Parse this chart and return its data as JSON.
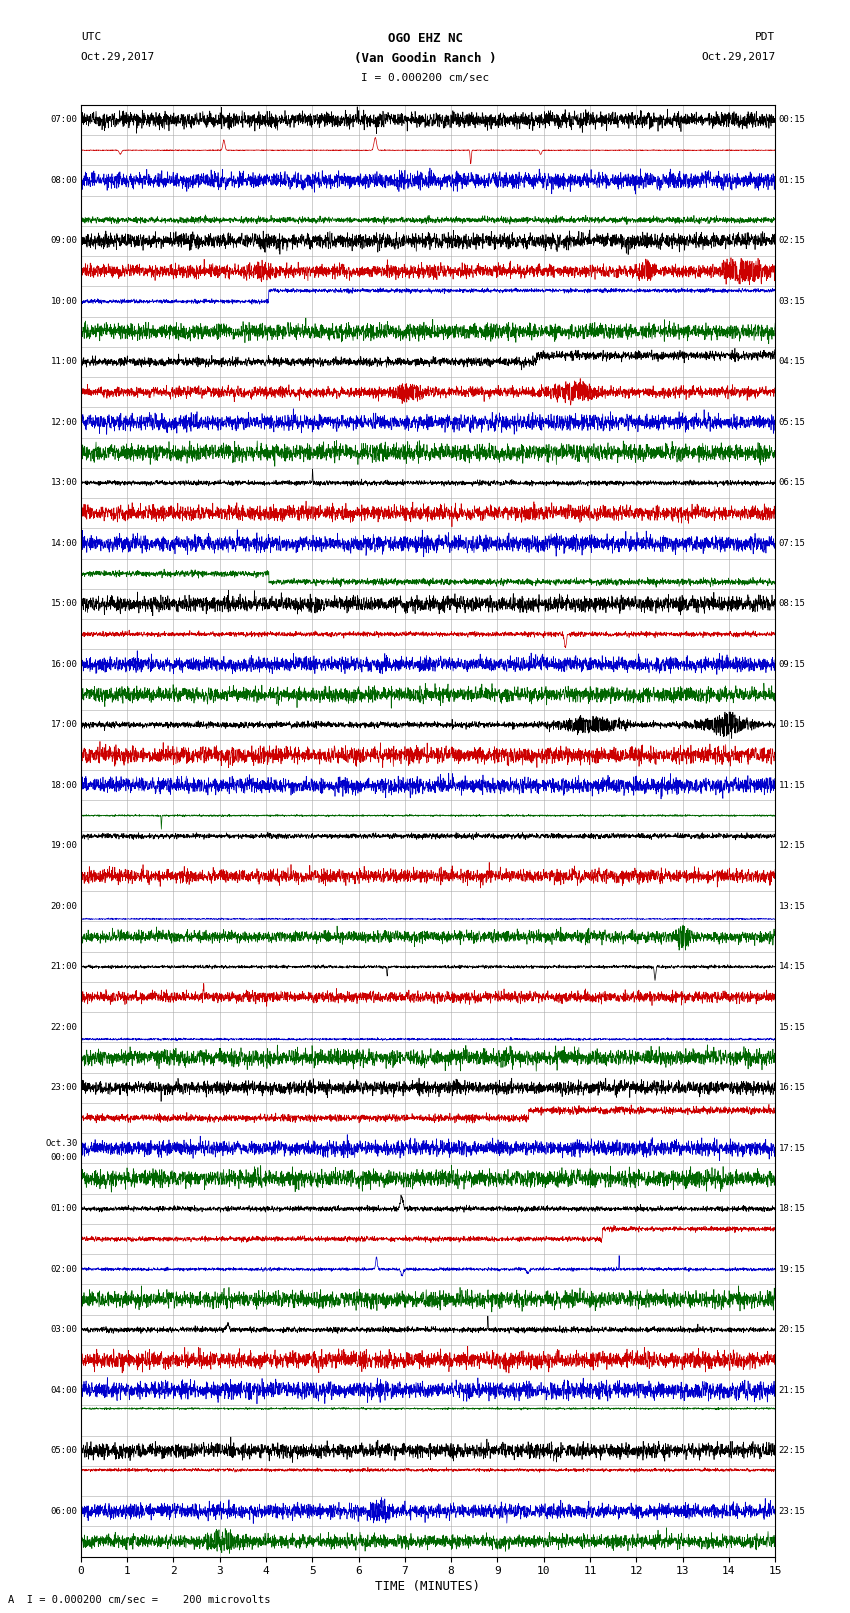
{
  "title_line1": "OGO EHZ NC",
  "title_line2": "(Van Goodin Ranch )",
  "scale_label": "I = 0.000200 cm/sec",
  "utc_label": "UTC",
  "utc_date": "Oct.29,2017",
  "pdt_label": "PDT",
  "pdt_date": "Oct.29,2017",
  "bottom_label": "A  I = 0.000200 cm/sec =    200 microvolts",
  "xlabel": "TIME (MINUTES)",
  "xlim": [
    0,
    15
  ],
  "xticks": [
    0,
    1,
    2,
    3,
    4,
    5,
    6,
    7,
    8,
    9,
    10,
    11,
    12,
    13,
    14,
    15
  ],
  "background_color": "#ffffff",
  "plot_bg_color": "#ffffff",
  "grid_color": "#aaaaaa",
  "trace_colors": [
    "#000000",
    "#cc0000",
    "#0000cc",
    "#006600"
  ],
  "num_rows": 48,
  "fig_width": 8.5,
  "fig_height": 16.13,
  "left_times": [
    "07:00",
    "",
    "08:00",
    "",
    "09:00",
    "",
    "10:00",
    "",
    "11:00",
    "",
    "12:00",
    "",
    "13:00",
    "",
    "14:00",
    "",
    "15:00",
    "",
    "16:00",
    "",
    "17:00",
    "",
    "18:00",
    "",
    "19:00",
    "",
    "20:00",
    "",
    "21:00",
    "",
    "22:00",
    "",
    "23:00",
    "",
    "Oct.30\n00:00",
    "",
    "01:00",
    "",
    "02:00",
    "",
    "03:00",
    "",
    "04:00",
    "",
    "05:00",
    "",
    "06:00"
  ],
  "right_times": [
    "00:15",
    "",
    "01:15",
    "",
    "02:15",
    "",
    "03:15",
    "",
    "04:15",
    "",
    "05:15",
    "",
    "06:15",
    "",
    "07:15",
    "",
    "08:15",
    "",
    "09:15",
    "",
    "10:15",
    "",
    "11:15",
    "",
    "12:15",
    "",
    "13:15",
    "",
    "14:15",
    "",
    "15:15",
    "",
    "16:15",
    "",
    "17:15",
    "",
    "18:15",
    "",
    "19:15",
    "",
    "20:15",
    "",
    "21:15",
    "",
    "22:15",
    "",
    "23:15"
  ],
  "seed": 12345
}
